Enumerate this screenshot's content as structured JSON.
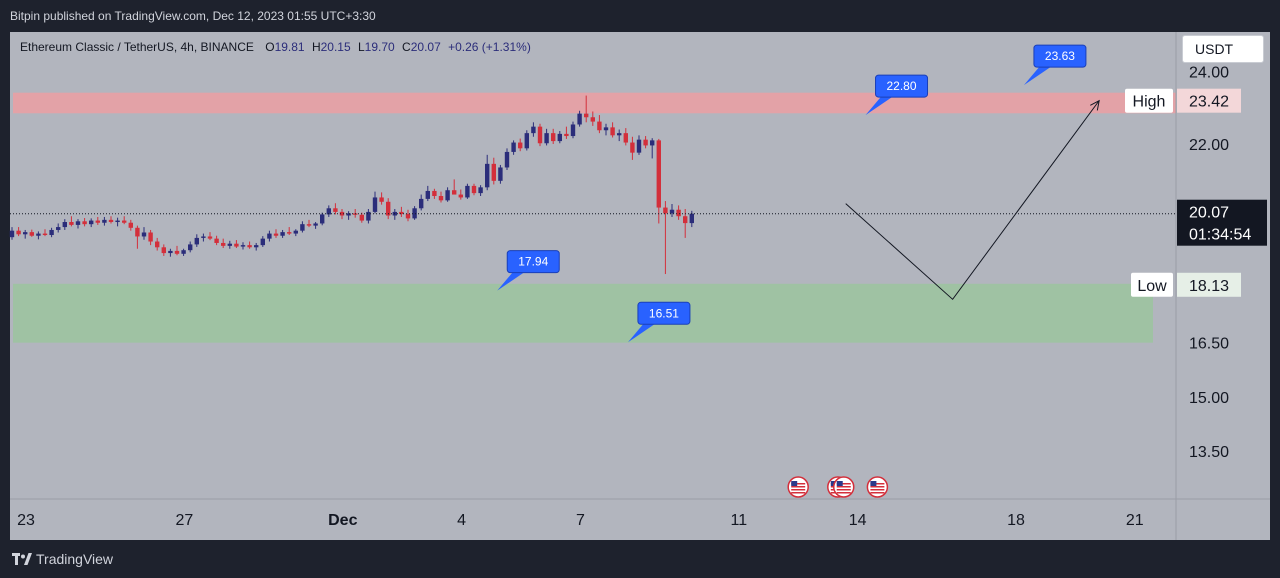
{
  "header": {
    "published_text": "Bitpin published on TradingView.com, Dec 12, 2023 01:55 UTC+3:30"
  },
  "legend": {
    "symbol": "Ethereum Classic / TetherUS, 4h, BINANCE",
    "o_label": "O",
    "o_value": "19.81",
    "h_label": "H",
    "h_value": "20.15",
    "l_label": "L",
    "l_value": "19.70",
    "c_label": "C",
    "c_value": "20.07",
    "change": "+0.26 (+1.31%)"
  },
  "currency_button": "USDT",
  "footer": {
    "brand": "TradingView"
  },
  "colors": {
    "up": "#2b2d7a",
    "down": "#d32f3b",
    "resistance_zone": "#e8a0a4",
    "support_zone": "#9cc3a0",
    "callout": "#2962ff"
  },
  "chart_data": {
    "type": "candlestick",
    "symbol": "ETCUSDT",
    "timeframe": "4h",
    "ylim": [
      12.2,
      25.1
    ],
    "y_ticks": [
      "24.00",
      "22.00",
      "16.50",
      "15.00",
      "13.50"
    ],
    "x_ticks": [
      {
        "label": "23",
        "day": 0
      },
      {
        "label": "27",
        "day": 4
      },
      {
        "label": "Dec",
        "day": 8
      },
      {
        "label": "4",
        "day": 11
      },
      {
        "label": "7",
        "day": 14
      },
      {
        "label": "11",
        "day": 18
      },
      {
        "label": "14",
        "day": 21
      },
      {
        "label": "18",
        "day": 25
      },
      {
        "label": "21",
        "day": 28
      }
    ],
    "current_price": {
      "price": "20.07",
      "countdown": "01:34:54",
      "value": 20.07
    },
    "zones": [
      {
        "name": "High",
        "label": "High",
        "value_label": "23.42",
        "from": 22.85,
        "to": 23.42
      },
      {
        "name": "Low",
        "label": "Low",
        "value_label": "18.13",
        "from": 16.5,
        "to": 18.13
      }
    ],
    "callouts": [
      {
        "text": "22.80",
        "day": 21.2,
        "price": 22.8
      },
      {
        "text": "23.63",
        "day": 25.2,
        "price": 23.63
      },
      {
        "text": "17.94",
        "day": 11.9,
        "price": 17.94
      },
      {
        "text": "16.51",
        "day": 15.2,
        "price": 16.51
      }
    ],
    "projection": [
      {
        "day": 20.7,
        "price": 20.35
      },
      {
        "day": 23.4,
        "price": 17.7
      },
      {
        "day": 27.1,
        "price": 23.2
      }
    ],
    "event_flags": [
      {
        "name": "us-flag-icon",
        "day": 19.5
      },
      {
        "name": "us-flag-icon",
        "day": 20.5
      },
      {
        "name": "us-flag-icon",
        "day": 20.65
      },
      {
        "name": "us-flag-icon",
        "day": 21.5
      }
    ],
    "candles": [
      [
        19.42,
        19.7,
        19.35,
        19.6
      ],
      [
        19.6,
        19.7,
        19.45,
        19.5
      ],
      [
        19.5,
        19.62,
        19.38,
        19.56
      ],
      [
        19.56,
        19.63,
        19.43,
        19.46
      ],
      [
        19.46,
        19.58,
        19.36,
        19.52
      ],
      [
        19.52,
        19.64,
        19.45,
        19.48
      ],
      [
        19.48,
        19.68,
        19.42,
        19.62
      ],
      [
        19.62,
        19.8,
        19.55,
        19.7
      ],
      [
        19.7,
        19.92,
        19.62,
        19.84
      ],
      [
        19.84,
        20.0,
        19.72,
        19.76
      ],
      [
        19.76,
        19.92,
        19.66,
        19.86
      ],
      [
        19.86,
        19.95,
        19.72,
        19.78
      ],
      [
        19.78,
        19.94,
        19.7,
        19.88
      ],
      [
        19.88,
        19.98,
        19.76,
        19.82
      ],
      [
        19.82,
        19.98,
        19.74,
        19.9
      ],
      [
        19.9,
        20.0,
        19.8,
        19.84
      ],
      [
        19.84,
        19.96,
        19.72,
        19.88
      ],
      [
        19.88,
        20.0,
        19.78,
        19.82
      ],
      [
        19.82,
        19.9,
        19.6,
        19.68
      ],
      [
        19.68,
        19.74,
        19.1,
        19.44
      ],
      [
        19.44,
        19.7,
        19.35,
        19.55
      ],
      [
        19.55,
        19.62,
        19.2,
        19.3
      ],
      [
        19.3,
        19.4,
        19.05,
        19.14
      ],
      [
        19.14,
        19.22,
        18.9,
        18.98
      ],
      [
        18.98,
        19.1,
        18.88,
        19.04
      ],
      [
        19.04,
        19.18,
        18.92,
        18.96
      ],
      [
        18.96,
        19.1,
        18.9,
        19.06
      ],
      [
        19.06,
        19.3,
        19.0,
        19.22
      ],
      [
        19.22,
        19.5,
        19.15,
        19.4
      ],
      [
        19.4,
        19.52,
        19.3,
        19.44
      ],
      [
        19.44,
        19.56,
        19.34,
        19.38
      ],
      [
        19.38,
        19.46,
        19.2,
        19.26
      ],
      [
        19.26,
        19.38,
        19.12,
        19.18
      ],
      [
        19.18,
        19.32,
        19.1,
        19.24
      ],
      [
        19.24,
        19.34,
        19.12,
        19.16
      ],
      [
        19.16,
        19.28,
        19.08,
        19.2
      ],
      [
        19.2,
        19.3,
        19.1,
        19.14
      ],
      [
        19.14,
        19.26,
        19.05,
        19.2
      ],
      [
        19.2,
        19.45,
        19.15,
        19.38
      ],
      [
        19.38,
        19.6,
        19.3,
        19.52
      ],
      [
        19.52,
        19.64,
        19.4,
        19.46
      ],
      [
        19.46,
        19.62,
        19.4,
        19.56
      ],
      [
        19.56,
        19.7,
        19.48,
        19.52
      ],
      [
        19.52,
        19.64,
        19.45,
        19.6
      ],
      [
        19.6,
        19.86,
        19.55,
        19.78
      ],
      [
        19.78,
        19.9,
        19.7,
        19.74
      ],
      [
        19.74,
        19.84,
        19.65,
        19.8
      ],
      [
        19.8,
        20.1,
        19.75,
        20.05
      ],
      [
        20.05,
        20.3,
        19.98,
        20.22
      ],
      [
        20.22,
        20.36,
        20.05,
        20.12
      ],
      [
        20.12,
        20.2,
        19.92,
        20.02
      ],
      [
        20.02,
        20.14,
        19.9,
        20.08
      ],
      [
        20.08,
        20.2,
        19.96,
        20.04
      ],
      [
        20.04,
        20.1,
        19.82,
        19.88
      ],
      [
        19.88,
        20.2,
        19.8,
        20.12
      ],
      [
        20.12,
        20.68,
        20.08,
        20.52
      ],
      [
        20.52,
        20.66,
        20.32,
        20.4
      ],
      [
        20.4,
        20.5,
        19.92,
        20.02
      ],
      [
        20.02,
        20.2,
        19.9,
        20.12
      ],
      [
        20.12,
        20.26,
        19.98,
        20.06
      ],
      [
        20.06,
        20.18,
        19.86,
        19.94
      ],
      [
        19.94,
        20.28,
        19.9,
        20.22
      ],
      [
        20.22,
        20.6,
        20.16,
        20.48
      ],
      [
        20.48,
        20.84,
        20.42,
        20.7
      ],
      [
        20.7,
        20.76,
        20.48,
        20.56
      ],
      [
        20.56,
        20.68,
        20.38,
        20.44
      ],
      [
        20.44,
        20.8,
        20.4,
        20.72
      ],
      [
        20.72,
        21.02,
        20.62,
        20.6
      ],
      [
        20.6,
        20.74,
        20.46,
        20.52
      ],
      [
        20.52,
        20.9,
        20.48,
        20.84
      ],
      [
        20.84,
        20.9,
        20.58,
        20.64
      ],
      [
        20.64,
        20.86,
        20.56,
        20.8
      ],
      [
        20.8,
        21.7,
        20.72,
        21.45
      ],
      [
        21.45,
        21.62,
        20.88,
        20.98
      ],
      [
        20.98,
        21.42,
        20.9,
        21.35
      ],
      [
        21.35,
        21.88,
        21.28,
        21.78
      ],
      [
        21.78,
        22.1,
        21.7,
        22.04
      ],
      [
        22.04,
        22.15,
        21.8,
        21.88
      ],
      [
        21.88,
        22.38,
        21.82,
        22.3
      ],
      [
        22.3,
        22.6,
        22.2,
        22.48
      ],
      [
        22.48,
        22.56,
        21.94,
        22.02
      ],
      [
        22.02,
        22.42,
        21.96,
        22.3
      ],
      [
        22.3,
        22.42,
        22.0,
        22.08
      ],
      [
        22.08,
        22.36,
        22.02,
        22.28
      ],
      [
        22.28,
        22.48,
        22.14,
        22.22
      ],
      [
        22.22,
        22.62,
        22.16,
        22.54
      ],
      [
        22.54,
        22.92,
        22.48,
        22.84
      ],
      [
        22.84,
        23.34,
        22.6,
        22.74
      ],
      [
        22.74,
        22.9,
        22.5,
        22.62
      ],
      [
        22.62,
        22.8,
        22.3,
        22.38
      ],
      [
        22.38,
        22.56,
        22.24,
        22.46
      ],
      [
        22.46,
        22.6,
        22.18,
        22.24
      ],
      [
        22.24,
        22.4,
        22.08,
        22.3
      ],
      [
        22.3,
        22.44,
        21.96,
        22.04
      ],
      [
        22.04,
        22.2,
        21.56,
        21.76
      ],
      [
        21.76,
        22.24,
        21.7,
        22.12
      ],
      [
        22.12,
        22.22,
        21.88,
        21.96
      ],
      [
        21.96,
        22.16,
        21.6,
        22.1
      ],
      [
        22.1,
        22.14,
        19.8,
        20.24
      ],
      [
        20.24,
        20.42,
        18.4,
        20.08
      ],
      [
        20.08,
        20.34,
        19.98,
        20.18
      ],
      [
        20.18,
        20.3,
        19.9,
        20.0
      ],
      [
        20.0,
        20.2,
        19.4,
        19.81
      ],
      [
        19.81,
        20.15,
        19.7,
        20.07
      ]
    ]
  }
}
